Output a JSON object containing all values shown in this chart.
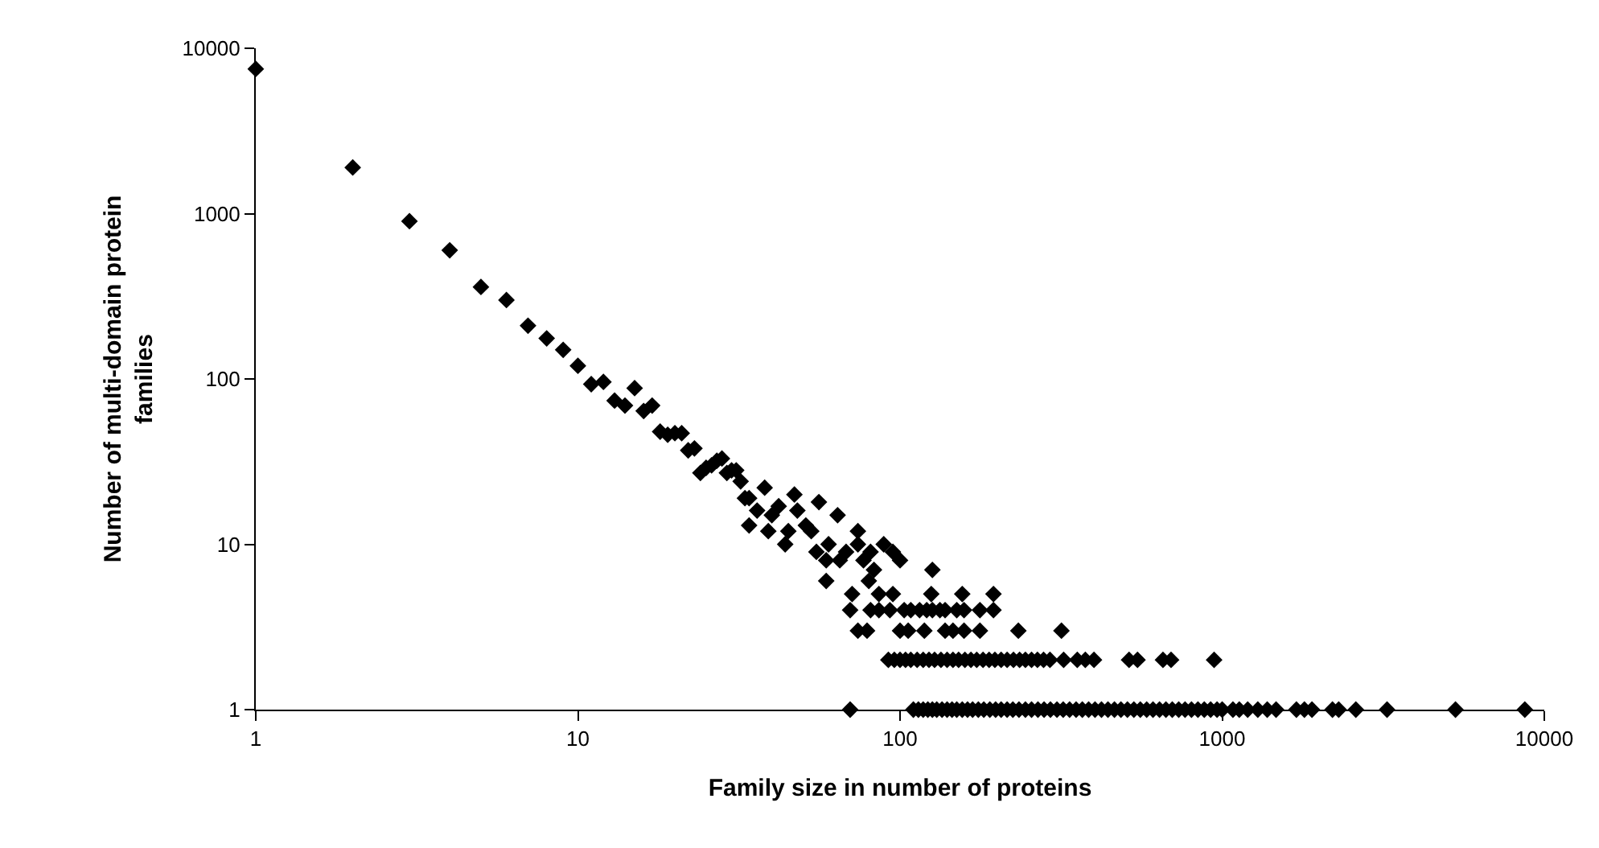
{
  "chart_data": {
    "type": "scatter",
    "xlabel": "Family size in number of proteins",
    "ylabel": "Number of multi-domain protein families",
    "log": "xy",
    "xlim": [
      1,
      10000
    ],
    "xticks": [
      1,
      10,
      100,
      1000,
      10000
    ],
    "ylim": [
      1,
      10000
    ],
    "yticks": [
      1,
      10,
      100,
      1000,
      10000
    ],
    "marker": "diamond",
    "series": [
      {
        "color": "#000000",
        "x": [
          1,
          2,
          3,
          4,
          5,
          6,
          7,
          8,
          9,
          10,
          11,
          12,
          13,
          14,
          15,
          16,
          17,
          18,
          19,
          20,
          21,
          22,
          23,
          24,
          25,
          26,
          27,
          28,
          29,
          30,
          31,
          32,
          33,
          34,
          36,
          38,
          40,
          42,
          47,
          48,
          51,
          53,
          56,
          39,
          44,
          45,
          34,
          55,
          59,
          59,
          60,
          64,
          65,
          68,
          74,
          74,
          77,
          71,
          81,
          83,
          80,
          86,
          89,
          95,
          95,
          100,
          126,
          125,
          156,
          195,
          70,
          81,
          86,
          93,
          103,
          108,
          115,
          121,
          126,
          133,
          138,
          150,
          158,
          177,
          195,
          74,
          79,
          100,
          106,
          119,
          138,
          146,
          158,
          177,
          233,
          317,
          92,
          96,
          100,
          104,
          108,
          113,
          118,
          123,
          128,
          134,
          140,
          146,
          152,
          159,
          166,
          173,
          181,
          189,
          197,
          206,
          215,
          225,
          235,
          245,
          256,
          267,
          279,
          292,
          322,
          355,
          376,
          400,
          514,
          546,
          655,
          694,
          944,
          70,
          110,
          114,
          118,
          122,
          126,
          130,
          135,
          140,
          145,
          150,
          156,
          162,
          168,
          175,
          182,
          190,
          198,
          206,
          215,
          224,
          234,
          245,
          256,
          268,
          280,
          293,
          307,
          321,
          336,
          352,
          368,
          385,
          403,
          422,
          442,
          463,
          485,
          508,
          532,
          557,
          583,
          610,
          639,
          669,
          700,
          733,
          767,
          803,
          841,
          880,
          921,
          964,
          1000,
          1080,
          1130,
          1200,
          1290,
          1380,
          1470,
          1700,
          1800,
          1900,
          2200,
          2300,
          2600,
          3250,
          5300,
          8700
        ],
        "values": [
          7500,
          1900,
          900,
          600,
          360,
          300,
          210,
          176,
          150,
          120,
          93,
          96,
          74,
          69,
          88,
          64,
          69,
          48,
          46,
          47,
          47,
          37,
          38,
          27,
          29,
          30,
          32,
          33,
          27,
          28,
          28,
          24,
          19,
          19,
          16,
          22,
          15,
          17,
          20,
          16,
          13,
          12,
          18,
          12,
          10,
          12,
          13,
          9,
          8,
          6,
          10,
          15,
          8,
          9,
          12,
          10,
          8,
          5,
          9,
          7,
          6,
          5,
          10,
          9,
          5,
          8,
          7,
          5,
          5,
          5,
          4,
          4,
          4,
          4,
          4,
          4,
          4,
          4,
          4,
          4,
          4,
          4,
          4,
          4,
          4,
          3,
          3,
          3,
          3,
          3,
          3,
          3,
          3,
          3,
          3,
          3,
          2,
          2,
          2,
          2,
          2,
          2,
          2,
          2,
          2,
          2,
          2,
          2,
          2,
          2,
          2,
          2,
          2,
          2,
          2,
          2,
          2,
          2,
          2,
          2,
          2,
          2,
          2,
          2,
          2,
          2,
          2,
          2,
          2,
          2,
          2,
          2,
          2,
          1,
          1,
          1,
          1,
          1,
          1,
          1,
          1,
          1,
          1,
          1,
          1,
          1,
          1,
          1,
          1,
          1,
          1,
          1,
          1,
          1,
          1,
          1,
          1,
          1,
          1,
          1,
          1,
          1,
          1,
          1,
          1,
          1,
          1,
          1,
          1,
          1,
          1,
          1,
          1,
          1,
          1,
          1,
          1,
          1,
          1,
          1,
          1,
          1,
          1,
          1,
          1,
          1,
          1,
          1,
          1,
          1,
          1,
          1,
          1,
          1,
          1,
          1,
          1,
          1,
          1,
          1,
          1,
          1
        ]
      }
    ]
  }
}
